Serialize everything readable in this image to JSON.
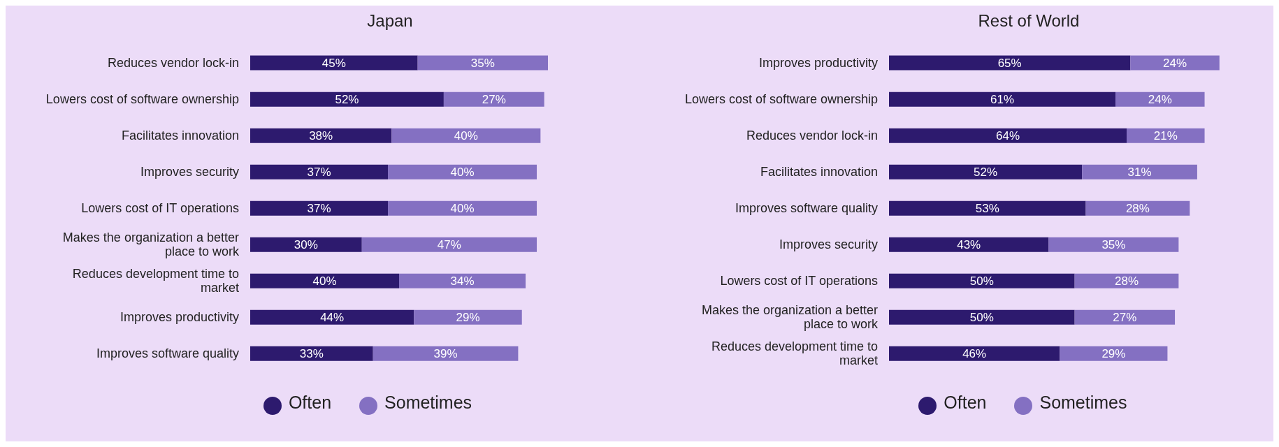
{
  "chart_data": [
    {
      "type": "bar",
      "orientation": "horizontal",
      "stacked": true,
      "title": "Japan",
      "legend": "bottom",
      "categories": [
        "Reduces vendor lock-in",
        "Lowers cost of software ownership",
        "Facilitates innovation",
        "Improves security",
        "Lowers cost of IT operations",
        "Makes the organization a better place to work",
        "Reduces development time to market",
        "Improves productivity",
        "Improves software quality"
      ],
      "series": [
        {
          "name": "Often",
          "color": "#2d1a6e",
          "values": [
            45,
            52,
            38,
            37,
            37,
            30,
            40,
            44,
            33
          ],
          "value_labels": [
            "45%",
            "52%",
            "38%",
            "37%",
            "37%",
            "30%",
            "40%",
            "44%",
            "33%"
          ]
        },
        {
          "name": "Sometimes",
          "color": "#8470c2",
          "values": [
            35,
            27,
            40,
            40,
            40,
            47,
            34,
            29,
            39
          ],
          "value_labels": [
            "35%",
            "27%",
            "40%",
            "40%",
            "40%",
            "47%",
            "34%",
            "29%",
            "39%"
          ]
        }
      ]
    },
    {
      "type": "bar",
      "orientation": "horizontal",
      "stacked": true,
      "title": "Rest of World",
      "legend": "bottom",
      "categories": [
        "Improves productivity",
        "Lowers cost of software ownership",
        "Reduces vendor lock-in",
        "Facilitates innovation",
        "Improves software quality",
        "Improves security",
        "Lowers cost of IT operations",
        "Makes the organization a better place to work",
        "Reduces development time to market"
      ],
      "series": [
        {
          "name": "Often",
          "color": "#2d1a6e",
          "values": [
            65,
            61,
            64,
            52,
            53,
            43,
            50,
            50,
            46
          ],
          "value_labels": [
            "65%",
            "61%",
            "64%",
            "52%",
            "53%",
            "43%",
            "50%",
            "50%",
            "46%"
          ]
        },
        {
          "name": "Sometimes",
          "color": "#8470c2",
          "values": [
            24,
            24,
            21,
            31,
            28,
            35,
            28,
            27,
            29
          ],
          "value_labels": [
            "24%",
            "24%",
            "21%",
            "31%",
            "28%",
            "35%",
            "28%",
            "27%",
            "29%"
          ]
        }
      ]
    }
  ]
}
